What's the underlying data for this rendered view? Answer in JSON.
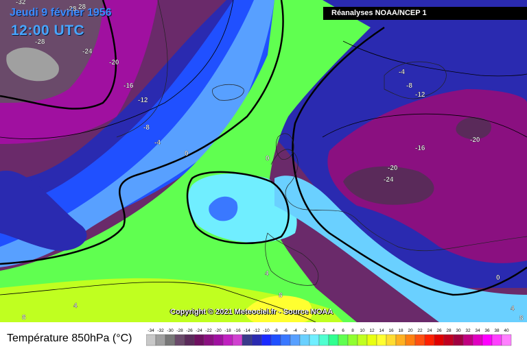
{
  "header": {
    "date": "Jeudi 9 février 1956",
    "time": "12:00 UTC",
    "source": "Réanalyses NOAA/NCEP 1"
  },
  "footer": {
    "copyright": "Copyright © 2021 Meteociel.fr - Source NOAA",
    "legend_title": "Température 850hPa (°C)"
  },
  "isotherm_labels": [
    "-32",
    "-28",
    "28",
    "-28",
    "-24",
    "-20",
    "-16",
    "-12",
    "-8",
    "-4",
    "0",
    "0",
    "-4",
    "-8",
    "-12",
    "-16",
    "-20",
    "-24",
    "-20",
    "4",
    "8",
    "4",
    "8",
    "4",
    "0",
    "8"
  ],
  "scale": {
    "ticks": [
      "-34",
      "-32",
      "-30",
      "-28",
      "-26",
      "-24",
      "-22",
      "-20",
      "-18",
      "-16",
      "-14",
      "-12",
      "-10",
      "-8",
      "-6",
      "-4",
      "-2",
      "0",
      "2",
      "4",
      "6",
      "8",
      "10",
      "12",
      "14",
      "16",
      "18",
      "20",
      "22",
      "24",
      "26",
      "28",
      "30",
      "32",
      "34",
      "36",
      "38",
      "40"
    ],
    "colors": [
      "#c8c8c8",
      "#a0a0a0",
      "#787878",
      "#6a4a6a",
      "#5a2a5a",
      "#6e1060",
      "#8a1080",
      "#a010a0",
      "#c020c0",
      "#d040d0",
      "#3a3a8a",
      "#2a2ab0",
      "#1a2aff",
      "#2050ff",
      "#3a78ff",
      "#58a0ff",
      "#6ad0ff",
      "#70eeff",
      "#50ffd0",
      "#30ff90",
      "#60ff50",
      "#90ff30",
      "#c0ff20",
      "#e8ff10",
      "#ffff30",
      "#ffdc30",
      "#ffb020",
      "#ff8010",
      "#ff5010",
      "#ff2000",
      "#e00000",
      "#c00020",
      "#a00040",
      "#c00080",
      "#e000c0",
      "#ff00ff",
      "#ff40ff",
      "#ff80ff"
    ]
  }
}
